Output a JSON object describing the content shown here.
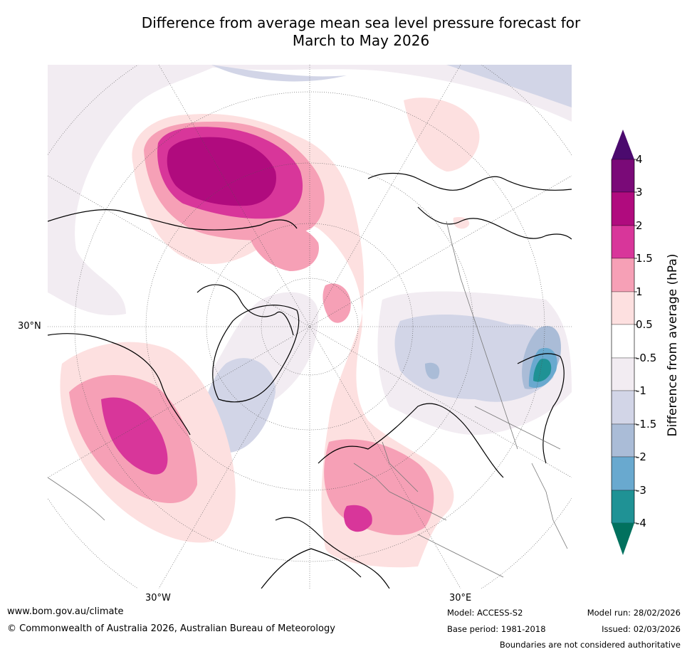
{
  "title": {
    "line1": "Difference from average mean sea level pressure forecast for",
    "line2": "March to May 2026"
  },
  "map": {
    "projection": "north-polar-stereographic",
    "labels": {
      "lat_30n": "30°N",
      "lon_30w": "30°W",
      "lon_30e": "30°E"
    }
  },
  "colorbar": {
    "title": "Difference from average (hPa)",
    "ticks": [
      "4",
      "3",
      "2",
      "1.5",
      "1",
      "0.5",
      "-0.5",
      "-1",
      "-1.5",
      "-2",
      "-3",
      "-4"
    ],
    "colors": {
      "gt4": "#4b0a6e",
      "3to4": "#7a0a78",
      "2to3": "#b00b7e",
      "1.5to2": "#d8369a",
      "1to1.5": "#f6a0b6",
      "0.5to1": "#fde0e0",
      "neutral": "#ffffff",
      "-1to-0.5": "#f2ecf2",
      "-1.5to-1": "#d2d5e7",
      "-2to-1.5": "#aabcd7",
      "-3to-2": "#69a9cf",
      "-4to-3": "#1f9295",
      "lt-4": "#01715e"
    }
  },
  "footer": {
    "website": "www.bom.gov.au/climate",
    "copyright": "© Commonwealth of Australia 2026, Australian Bureau of Meteorology",
    "model": "Model: ACCESS-S2",
    "base_period": "Base period: 1981-2018",
    "model_run": "Model run: 28/02/2026",
    "issued": "Issued: 02/03/2026",
    "disclaimer": "Boundaries are not considered authoritative"
  }
}
